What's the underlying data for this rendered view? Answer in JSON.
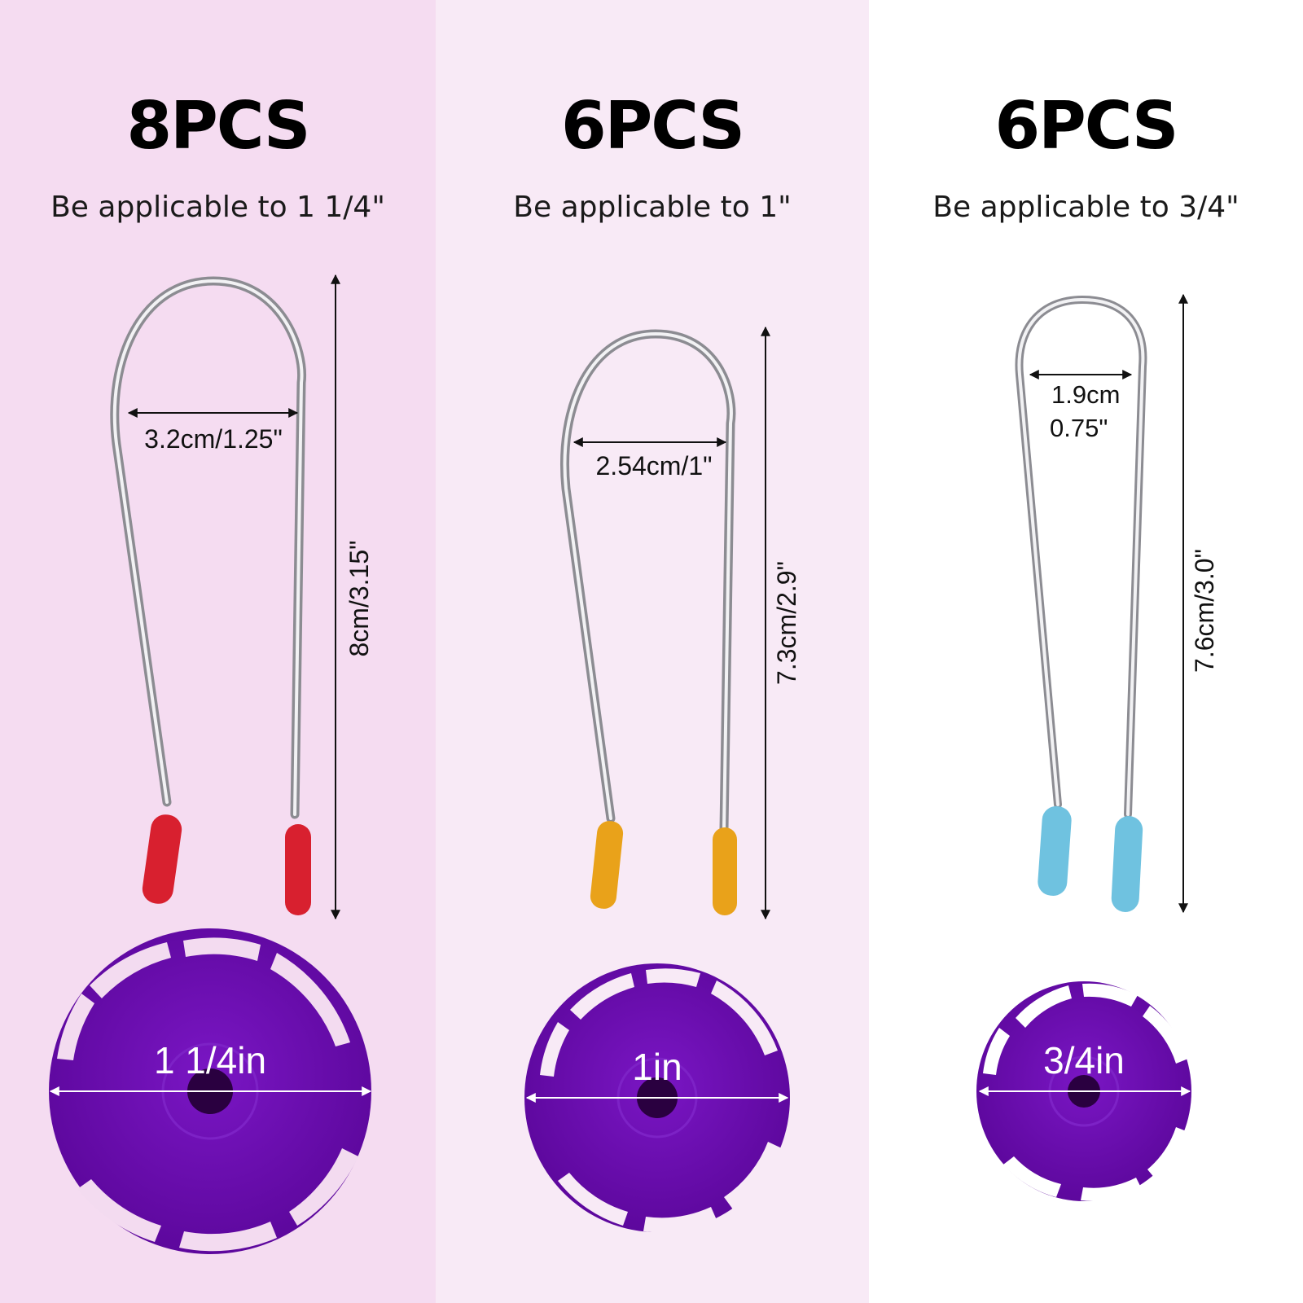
{
  "panels": [
    {
      "quantity": "8PCS",
      "applicable": "Be applicable to 1 1/4\"",
      "width_label": "3.2cm/1.25\"",
      "height_label": "8cm/3.15\"",
      "cap_label": "1 1/4in",
      "tip_color": "#d8202f",
      "background": "#f5dcf1"
    },
    {
      "quantity": "6PCS",
      "applicable": "Be applicable to 1\"",
      "width_label": "2.54cm/1\"",
      "height_label": "7.3cm/2.9\"",
      "cap_label": "1in",
      "tip_color": "#e9a21a",
      "background": "#f8eaf6"
    },
    {
      "quantity": "6PCS",
      "applicable": "Be applicable to 3/4\"",
      "width_label_line1": "1.9cm",
      "width_label_line2": "0.75\"",
      "height_label": "7.6cm/3.0\"",
      "cap_label": "3/4in",
      "tip_color": "#6fc2e0",
      "background": "#ffffff"
    }
  ],
  "colors": {
    "cap_purple": "#6a0dad",
    "wire_silver": "#c8c8cc"
  }
}
